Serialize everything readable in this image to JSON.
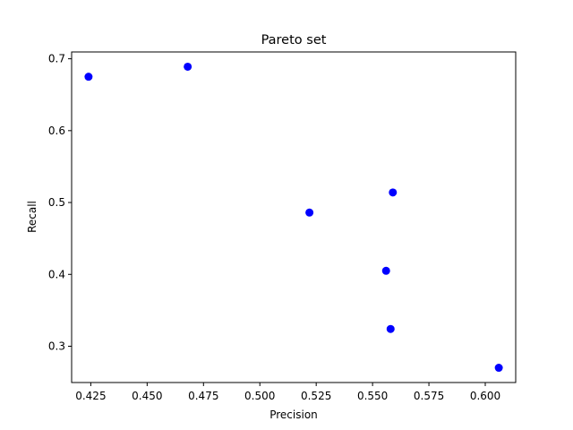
{
  "chart_data": {
    "type": "scatter",
    "title": "Pareto set",
    "xlabel": "Precision",
    "ylabel": "Recall",
    "xlim": [
      0.4165,
      0.6135
    ],
    "ylim": [
      0.2495,
      0.7095
    ],
    "xticks": [
      {
        "value": 0.425,
        "label": "0.425"
      },
      {
        "value": 0.45,
        "label": "0.450"
      },
      {
        "value": 0.475,
        "label": "0.475"
      },
      {
        "value": 0.5,
        "label": "0.500"
      },
      {
        "value": 0.525,
        "label": "0.525"
      },
      {
        "value": 0.55,
        "label": "0.550"
      },
      {
        "value": 0.575,
        "label": "0.575"
      },
      {
        "value": 0.6,
        "label": "0.600"
      }
    ],
    "yticks": [
      {
        "value": 0.3,
        "label": "0.3"
      },
      {
        "value": 0.4,
        "label": "0.4"
      },
      {
        "value": 0.5,
        "label": "0.5"
      },
      {
        "value": 0.6,
        "label": "0.6"
      },
      {
        "value": 0.7,
        "label": "0.7"
      }
    ],
    "grid": false,
    "color": "#0000ff",
    "points": [
      {
        "x": 0.424,
        "y": 0.675
      },
      {
        "x": 0.468,
        "y": 0.689
      },
      {
        "x": 0.522,
        "y": 0.486
      },
      {
        "x": 0.556,
        "y": 0.405
      },
      {
        "x": 0.558,
        "y": 0.324
      },
      {
        "x": 0.559,
        "y": 0.514
      },
      {
        "x": 0.606,
        "y": 0.27
      }
    ]
  }
}
